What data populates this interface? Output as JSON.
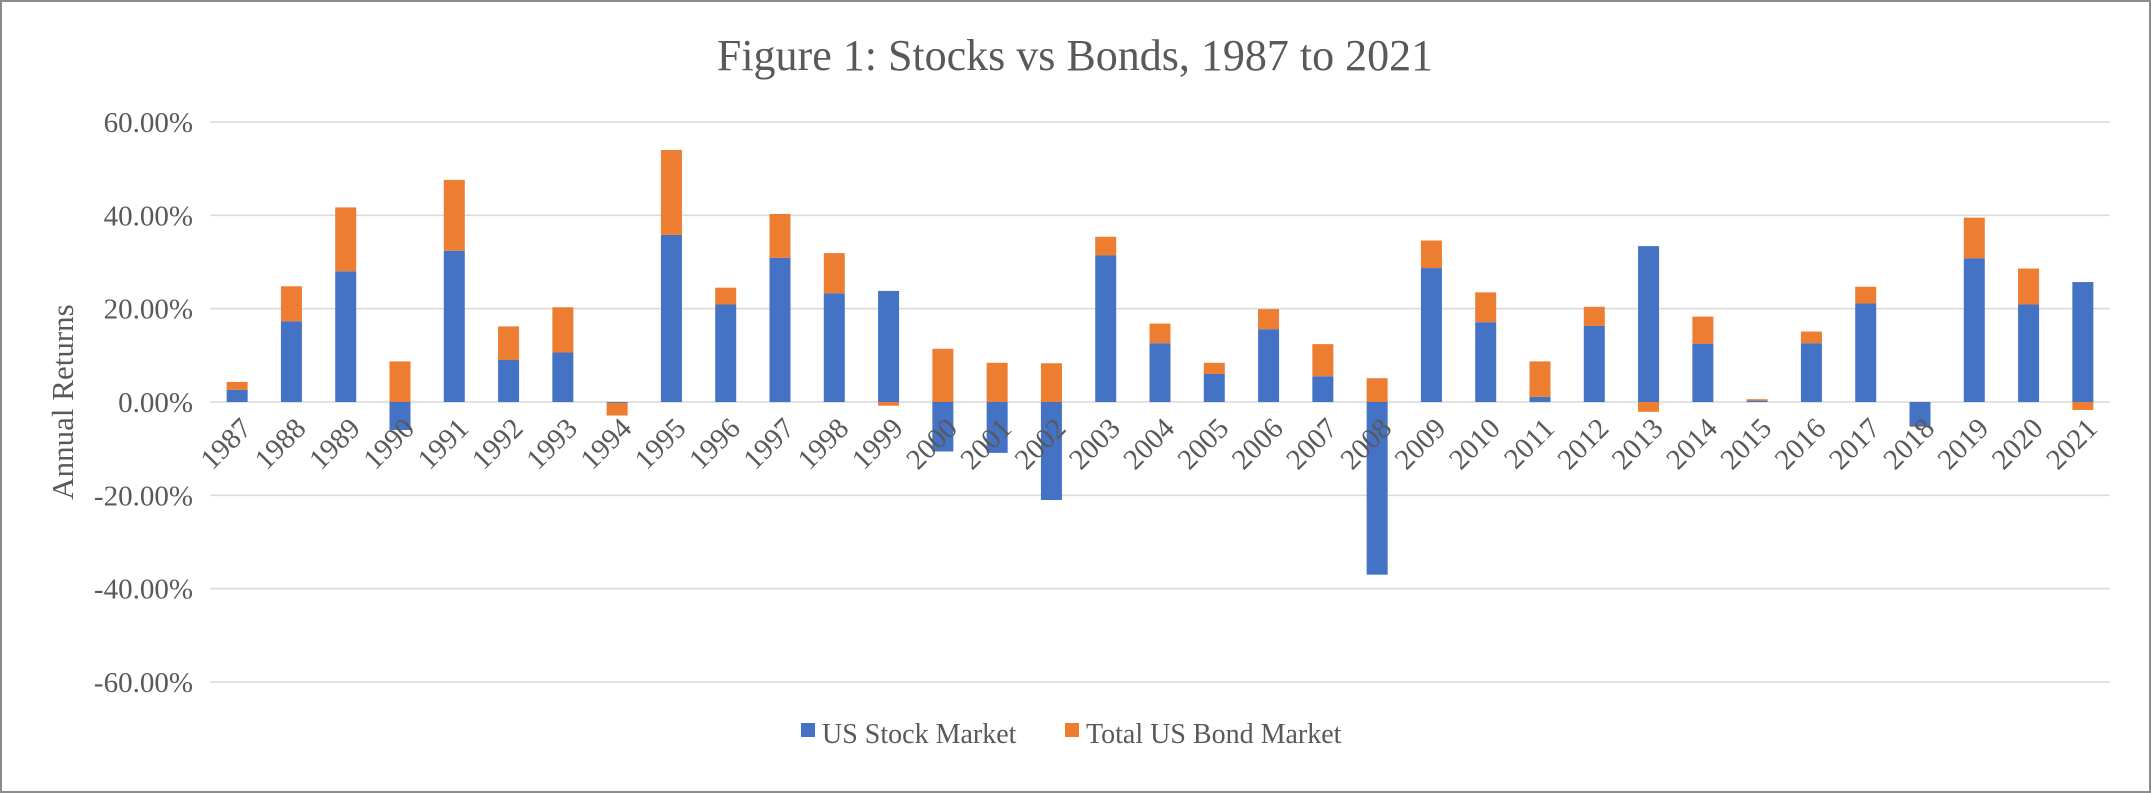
{
  "chart_data": {
    "type": "bar",
    "stacked": true,
    "title": "Figure 1: Stocks vs Bonds, 1987 to 2021",
    "ylabel": "Annual Returns",
    "xlabel": "",
    "ylim": [
      -60,
      60
    ],
    "y_ticks": [
      "60.00%",
      "40.00%",
      "20.00%",
      "0.00%",
      "-20.00%",
      "-40.00%",
      "-60.00%"
    ],
    "y_tick_values": [
      60,
      40,
      20,
      0,
      -20,
      -40,
      -60
    ],
    "grid": true,
    "legend_position": "bottom",
    "categories": [
      "1987",
      "1988",
      "1989",
      "1990",
      "1991",
      "1992",
      "1993",
      "1994",
      "1995",
      "1996",
      "1997",
      "1998",
      "1999",
      "2000",
      "2001",
      "2002",
      "2003",
      "2004",
      "2005",
      "2006",
      "2007",
      "2008",
      "2009",
      "2010",
      "2011",
      "2012",
      "2013",
      "2014",
      "2015",
      "2016",
      "2017",
      "2018",
      "2019",
      "2020",
      "2021"
    ],
    "series": [
      {
        "name": "US Stock Market",
        "color": "#4472C4",
        "values": [
          2.6,
          17.3,
          28.0,
          -6.0,
          32.4,
          9.0,
          10.6,
          -0.2,
          35.8,
          20.9,
          30.9,
          23.3,
          23.8,
          -10.6,
          -10.9,
          -21.0,
          31.4,
          12.6,
          6.0,
          15.6,
          5.5,
          -37.0,
          28.7,
          17.1,
          1.1,
          16.3,
          33.4,
          12.5,
          0.3,
          12.6,
          21.1,
          -5.2,
          30.8,
          20.9,
          25.7
        ]
      },
      {
        "name": "Total US Bond Market",
        "color": "#ED7D31",
        "values": [
          1.7,
          7.5,
          13.7,
          8.7,
          15.2,
          7.2,
          9.7,
          -2.7,
          18.2,
          3.6,
          9.4,
          8.6,
          -0.8,
          11.4,
          8.4,
          8.3,
          4.0,
          4.2,
          2.4,
          4.3,
          6.9,
          5.1,
          5.9,
          6.4,
          7.6,
          4.1,
          -2.1,
          5.8,
          0.3,
          2.5,
          3.6,
          -0.1,
          8.7,
          7.7,
          -1.7
        ]
      }
    ]
  }
}
